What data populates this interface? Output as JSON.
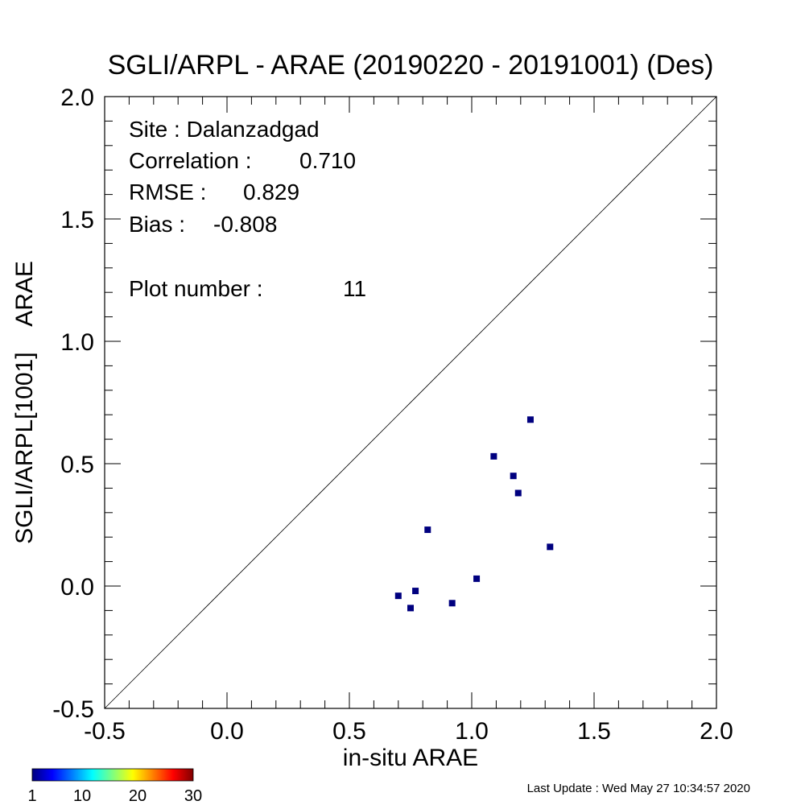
{
  "chart_data": {
    "type": "scatter",
    "title": "SGLI/ARPL - ARAE (20190220 - 20191001) (Des)",
    "xlabel": "in-situ ARAE",
    "ylabel": "SGLI/ARPL[1001]    ARAE",
    "xlim": [
      -0.5,
      2.0
    ],
    "ylim": [
      -0.5,
      2.0
    ],
    "x_ticks": [
      "-0.5",
      "0.0",
      "0.5",
      "1.0",
      "1.5",
      "2.0"
    ],
    "y_ticks": [
      "-0.5",
      "0.0",
      "0.5",
      "1.0",
      "1.5",
      "2.0"
    ],
    "reference_line": "1:1",
    "points": [
      {
        "x": 0.7,
        "y": -0.04
      },
      {
        "x": 0.75,
        "y": -0.09
      },
      {
        "x": 0.77,
        "y": -0.02
      },
      {
        "x": 0.82,
        "y": 0.23
      },
      {
        "x": 0.92,
        "y": -0.07
      },
      {
        "x": 1.02,
        "y": 0.03
      },
      {
        "x": 1.09,
        "y": 0.53
      },
      {
        "x": 1.17,
        "y": 0.45
      },
      {
        "x": 1.19,
        "y": 0.38
      },
      {
        "x": 1.24,
        "y": 0.68
      },
      {
        "x": 1.32,
        "y": 0.16
      }
    ],
    "marker_color": "#00007f",
    "stats": [
      {
        "label": "Site : Dalanzadgad",
        "value": ""
      },
      {
        "label": "Correlation :",
        "value": "0.710"
      },
      {
        "label": "RMSE :",
        "value": "0.829"
      },
      {
        "label": "Bias :",
        "value": "-0.808"
      },
      {
        "label": "Plot number :",
        "value": "11"
      }
    ],
    "colorbar": {
      "ticks": [
        "1",
        "10",
        "20",
        "30"
      ],
      "colormap": [
        "#00007f",
        "#0000ff",
        "#007fff",
        "#00ffff",
        "#7fff7f",
        "#ffff00",
        "#ff7f00",
        "#ff0000",
        "#7f0000"
      ]
    },
    "footer": "Last Update : Wed May 27 10:34:57 2020"
  }
}
